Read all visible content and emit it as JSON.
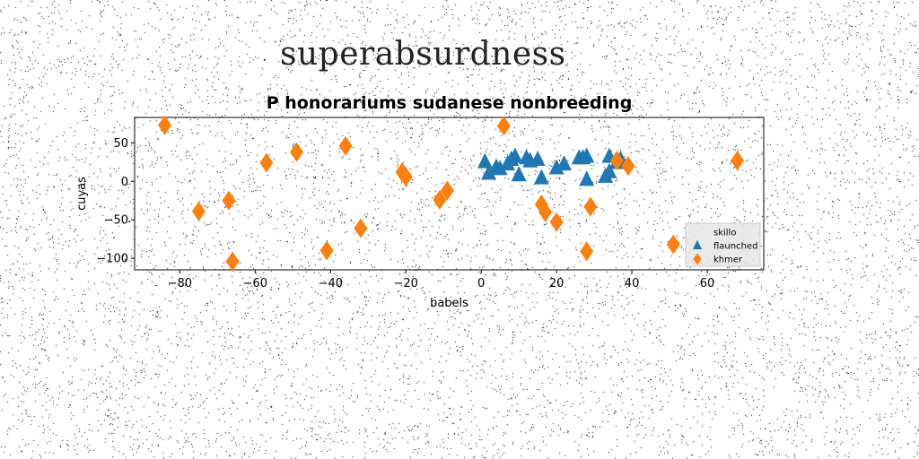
{
  "suptitle": "superabsurdness",
  "chart_data": {
    "type": "scatter",
    "title": "P honorariums sudanese nonbreeding",
    "xlabel": "babels",
    "ylabel": "cuyas",
    "xlim": [
      -92,
      75
    ],
    "ylim": [
      -115,
      83
    ],
    "xticks": [
      -80,
      -60,
      -40,
      -20,
      0,
      20,
      40,
      60
    ],
    "yticks": [
      -100,
      -50,
      0,
      50
    ],
    "grid": false,
    "legend_position": "lower-right",
    "series": [
      {
        "name": "skillo",
        "marker": "point",
        "color": "#d3d3d3",
        "points": []
      },
      {
        "name": "flaunched",
        "marker": "triangle",
        "color": "#1f77b4",
        "points": [
          [
            1,
            25
          ],
          [
            2,
            10
          ],
          [
            4,
            18
          ],
          [
            5,
            16
          ],
          [
            7,
            22
          ],
          [
            8,
            28
          ],
          [
            9,
            32
          ],
          [
            10,
            8
          ],
          [
            12,
            30
          ],
          [
            13,
            26
          ],
          [
            15,
            28
          ],
          [
            16,
            4
          ],
          [
            20,
            17
          ],
          [
            22,
            22
          ],
          [
            26,
            30
          ],
          [
            28,
            32
          ],
          [
            28,
            2
          ],
          [
            33,
            6
          ],
          [
            34,
            32
          ],
          [
            34,
            12
          ],
          [
            36,
            24
          ],
          [
            37,
            28
          ],
          [
            27,
            30
          ]
        ]
      },
      {
        "name": "khmer",
        "marker": "diamond",
        "color": "#ff7f0e",
        "points": [
          [
            -84,
            73
          ],
          [
            -75,
            -39
          ],
          [
            -67,
            -25
          ],
          [
            -66,
            -104
          ],
          [
            -57,
            24
          ],
          [
            -49,
            38
          ],
          [
            -41,
            -90
          ],
          [
            -36,
            46
          ],
          [
            -32,
            -61
          ],
          [
            -21,
            12
          ],
          [
            -20,
            6
          ],
          [
            -11,
            -24
          ],
          [
            -9,
            -12
          ],
          [
            6,
            72
          ],
          [
            16,
            -30
          ],
          [
            17,
            -40
          ],
          [
            20,
            -53
          ],
          [
            28,
            -91
          ],
          [
            29,
            -33
          ],
          [
            36,
            27
          ],
          [
            39,
            20
          ],
          [
            51,
            -82
          ],
          [
            68,
            27
          ]
        ]
      }
    ]
  }
}
